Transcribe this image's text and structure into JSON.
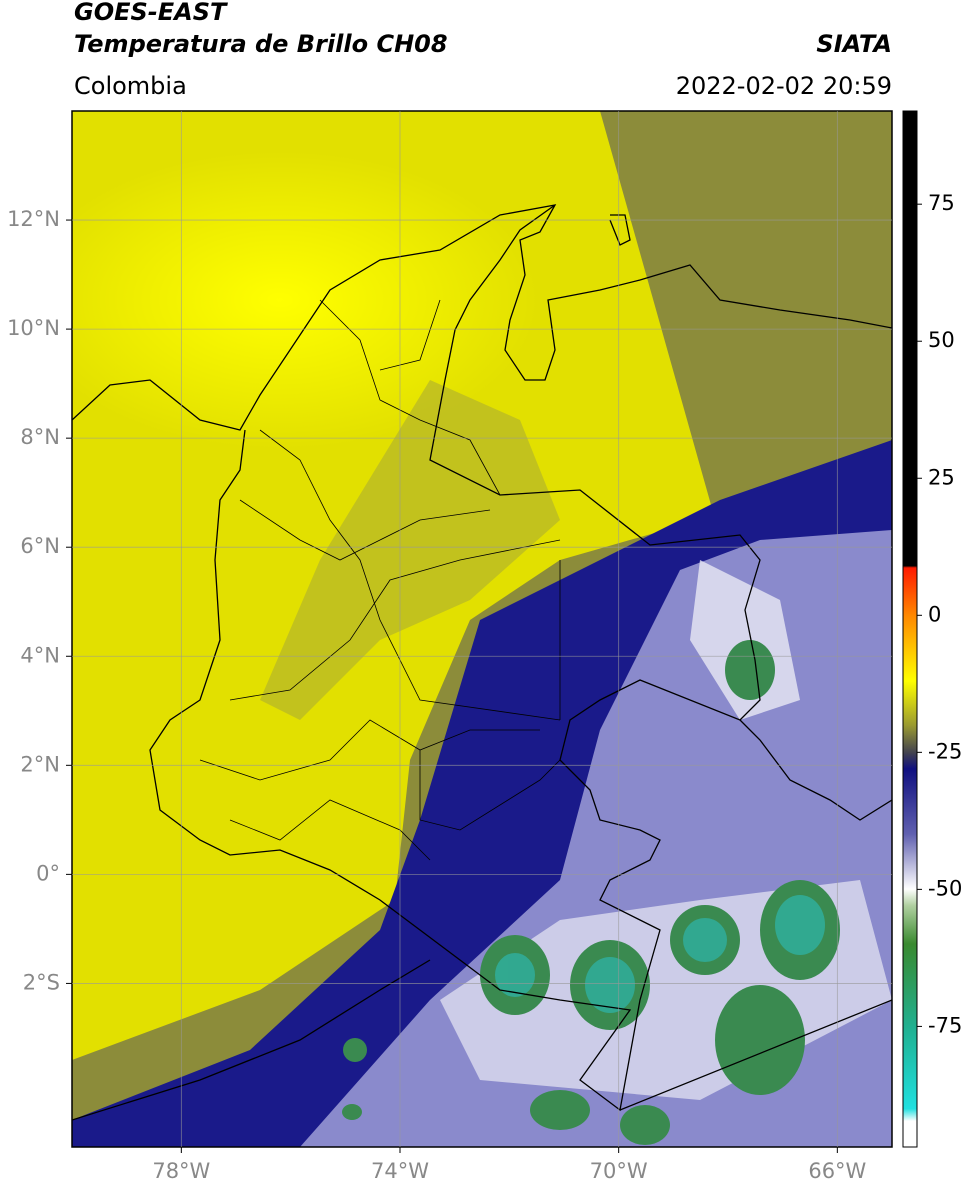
{
  "header": {
    "title": "GOES-EAST",
    "subtitle": "Temperatura de Brillo CH08",
    "agency": "SIATA",
    "region": "Colombia",
    "datetime": "2022-02-02 20:59"
  },
  "map": {
    "xlim": [
      -80,
      -65
    ],
    "ylim": [
      -5,
      14
    ],
    "xticks": [
      {
        "value": -78,
        "label": "78°W"
      },
      {
        "value": -74,
        "label": "74°W"
      },
      {
        "value": -70,
        "label": "70°W"
      },
      {
        "value": -66,
        "label": "66°W"
      }
    ],
    "yticks": [
      {
        "value": 12,
        "label": "12°N"
      },
      {
        "value": 10,
        "label": "10°N"
      },
      {
        "value": 8,
        "label": "8°N"
      },
      {
        "value": 6,
        "label": "6°N"
      },
      {
        "value": 4,
        "label": "4°N"
      },
      {
        "value": 2,
        "label": "2°N"
      },
      {
        "value": 0,
        "label": "0°"
      },
      {
        "value": -2,
        "label": "2°S"
      }
    ],
    "grid": true
  },
  "colorbar": {
    "clim": [
      -97,
      92
    ],
    "ticks": [
      75,
      50,
      25,
      0,
      -25,
      -50,
      -75
    ]
  }
}
